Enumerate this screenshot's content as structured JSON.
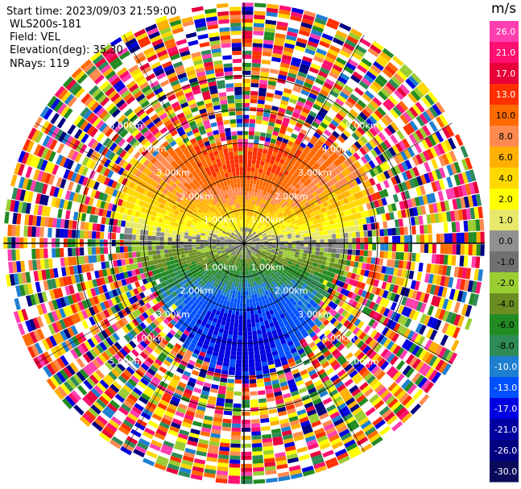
{
  "header": {
    "start_time": "Start time: 2023/09/03 21:59:00",
    "instrument": "WLS200s-181",
    "field": "Field: VEL",
    "elevation": "Elevation(deg): 35.30",
    "nrays": "NRays: 119"
  },
  "chart_data": {
    "type": "heatmap",
    "subtype": "polar-ppi",
    "title": "",
    "ring_labels": [
      "1.00km",
      "2.00km",
      "3.00km",
      "4.00km",
      "5.00km"
    ],
    "rings_km": [
      1,
      2,
      3,
      4,
      5
    ],
    "max_range_km": 7.2,
    "nrays": 119,
    "colorbar": {
      "unit": "m/s",
      "ticks": [
        "26.0",
        "21.0",
        "17.0",
        "13.0",
        "10.0",
        "8.0",
        "6.0",
        "4.0",
        "2.0",
        "1.0",
        "0.0",
        "-1.0",
        "-2.0",
        "-4.0",
        "-6.0",
        "-8.0",
        "-10.0",
        "-13.0",
        "-17.0",
        "-21.0",
        "-26.0",
        "-30.0"
      ],
      "colors": [
        "#ff3fb0",
        "#ff0f70",
        "#e8003a",
        "#ff3000",
        "#ff6a00",
        "#ff8a50",
        "#ffb000",
        "#ffd800",
        "#ffff00",
        "#e8e86a",
        "#909090",
        "#707070",
        "#9acd32",
        "#6b8e23",
        "#228b22",
        "#2e8b57",
        "#1e7fd0",
        "#0050ff",
        "#0000e0",
        "#0000a0",
        "#000080",
        "#0a0a5a"
      ]
    }
  }
}
